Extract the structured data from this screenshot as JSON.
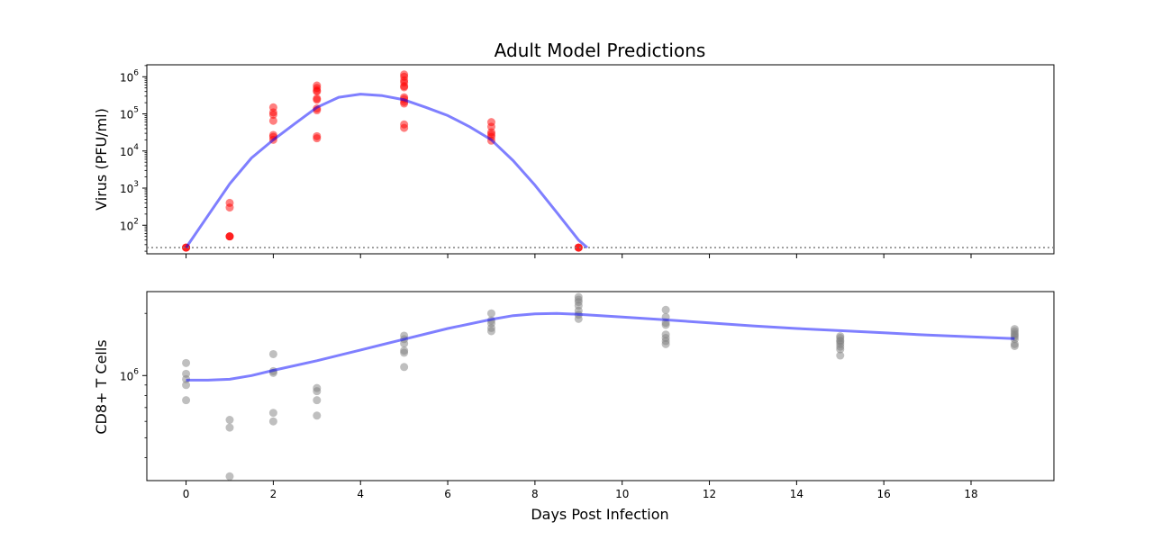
{
  "chart_data": {
    "type": "scatter",
    "title": "Adult Model Predictions",
    "xlabel": "Days Post Infection",
    "xlim": [
      -0.9,
      19.9
    ],
    "xticks": [
      0,
      2,
      4,
      6,
      8,
      10,
      12,
      14,
      16,
      18
    ],
    "xtick_labels": [
      "0",
      "2",
      "4",
      "6",
      "8",
      "10",
      "12",
      "14",
      "16",
      "18"
    ],
    "panels": [
      {
        "id": "virus",
        "ylabel": "Virus (PFU/ml)",
        "yscale": "log",
        "ylim": [
          17,
          2100000
        ],
        "yticks": [
          100,
          1000,
          10000,
          100000,
          1000000
        ],
        "ytick_bases": [
          "10",
          "10",
          "10",
          "10",
          "10"
        ],
        "ytick_exponents": [
          "2",
          "3",
          "4",
          "5",
          "6"
        ],
        "detection_limit": 25,
        "point_color": "#ff0000",
        "points": [
          [
            0,
            25
          ],
          [
            0,
            25
          ],
          [
            0,
            25
          ],
          [
            1,
            400
          ],
          [
            1,
            300
          ],
          [
            1,
            50
          ],
          [
            1,
            50
          ],
          [
            1,
            50
          ],
          [
            2,
            150000
          ],
          [
            2,
            110000
          ],
          [
            2,
            95000
          ],
          [
            2,
            65000
          ],
          [
            2,
            27000
          ],
          [
            2,
            24000
          ],
          [
            2,
            20000
          ],
          [
            3,
            580000
          ],
          [
            3,
            500000
          ],
          [
            3,
            430000
          ],
          [
            3,
            400000
          ],
          [
            3,
            260000
          ],
          [
            3,
            240000
          ],
          [
            3,
            140000
          ],
          [
            3,
            125000
          ],
          [
            3,
            25000
          ],
          [
            3,
            22000
          ],
          [
            5,
            1150000
          ],
          [
            5,
            1000000
          ],
          [
            5,
            800000
          ],
          [
            5,
            700000
          ],
          [
            5,
            560000
          ],
          [
            5,
            520000
          ],
          [
            5,
            280000
          ],
          [
            5,
            250000
          ],
          [
            5,
            210000
          ],
          [
            5,
            190000
          ],
          [
            5,
            52000
          ],
          [
            5,
            42000
          ],
          [
            7,
            60000
          ],
          [
            7,
            45000
          ],
          [
            7,
            32000
          ],
          [
            7,
            28000
          ],
          [
            7,
            24000
          ],
          [
            7,
            19000
          ],
          [
            9,
            25
          ],
          [
            9,
            25
          ],
          [
            9,
            25
          ]
        ],
        "fit_color": "#0000ff",
        "fit": [
          [
            0,
            25
          ],
          [
            0.5,
            180
          ],
          [
            1,
            1300
          ],
          [
            1.5,
            6500
          ],
          [
            2,
            20000
          ],
          [
            2.5,
            55000
          ],
          [
            3,
            150000
          ],
          [
            3.5,
            280000
          ],
          [
            4,
            340000
          ],
          [
            4.5,
            310000
          ],
          [
            5,
            240000
          ],
          [
            5.5,
            150000
          ],
          [
            6,
            90000
          ],
          [
            6.5,
            45000
          ],
          [
            7,
            20000
          ],
          [
            7.5,
            5500
          ],
          [
            8,
            1200
          ],
          [
            8.5,
            220
          ],
          [
            9,
            40
          ],
          [
            9.2,
            25
          ]
        ]
      },
      {
        "id": "cd8",
        "ylabel": "CD8+ T Cells",
        "yscale": "log",
        "ylim": [
          310000,
          2550000
        ],
        "yticks": [
          1000000
        ],
        "ytick_bases": [
          "10"
        ],
        "ytick_exponents": [
          "6"
        ],
        "point_color": "#808080",
        "points": [
          [
            0,
            1150000
          ],
          [
            0,
            1020000
          ],
          [
            0,
            960000
          ],
          [
            0,
            900000
          ],
          [
            0,
            760000
          ],
          [
            1,
            610000
          ],
          [
            1,
            560000
          ],
          [
            1,
            325000
          ],
          [
            2,
            1270000
          ],
          [
            2,
            1050000
          ],
          [
            2,
            1030000
          ],
          [
            2,
            660000
          ],
          [
            2,
            600000
          ],
          [
            3,
            870000
          ],
          [
            3,
            840000
          ],
          [
            3,
            760000
          ],
          [
            3,
            640000
          ],
          [
            5,
            1560000
          ],
          [
            5,
            1500000
          ],
          [
            5,
            1430000
          ],
          [
            5,
            1320000
          ],
          [
            5,
            1290000
          ],
          [
            5,
            1100000
          ],
          [
            7,
            2000000
          ],
          [
            7,
            1850000
          ],
          [
            7,
            1790000
          ],
          [
            7,
            1700000
          ],
          [
            7,
            1640000
          ],
          [
            9,
            2400000
          ],
          [
            9,
            2330000
          ],
          [
            9,
            2270000
          ],
          [
            9,
            2180000
          ],
          [
            9,
            2060000
          ],
          [
            9,
            1970000
          ],
          [
            9,
            1880000
          ],
          [
            11,
            2080000
          ],
          [
            11,
            1920000
          ],
          [
            11,
            1800000
          ],
          [
            11,
            1760000
          ],
          [
            11,
            1580000
          ],
          [
            11,
            1520000
          ],
          [
            11,
            1470000
          ],
          [
            11,
            1420000
          ],
          [
            15,
            1550000
          ],
          [
            15,
            1520000
          ],
          [
            15,
            1480000
          ],
          [
            15,
            1460000
          ],
          [
            15,
            1420000
          ],
          [
            15,
            1380000
          ],
          [
            15,
            1340000
          ],
          [
            15,
            1250000
          ],
          [
            19,
            1680000
          ],
          [
            19,
            1640000
          ],
          [
            19,
            1600000
          ],
          [
            19,
            1570000
          ],
          [
            19,
            1540000
          ],
          [
            19,
            1500000
          ],
          [
            19,
            1420000
          ],
          [
            19,
            1390000
          ]
        ],
        "fit_color": "#0000ff",
        "fit": [
          [
            0,
            950000
          ],
          [
            0.5,
            950000
          ],
          [
            1,
            960000
          ],
          [
            1.5,
            1000000
          ],
          [
            2,
            1060000
          ],
          [
            3,
            1180000
          ],
          [
            4,
            1330000
          ],
          [
            5,
            1500000
          ],
          [
            6,
            1690000
          ],
          [
            7,
            1870000
          ],
          [
            7.5,
            1950000
          ],
          [
            8,
            1990000
          ],
          [
            8.5,
            2000000
          ],
          [
            9,
            1980000
          ],
          [
            10,
            1920000
          ],
          [
            11,
            1860000
          ],
          [
            12,
            1800000
          ],
          [
            13,
            1740000
          ],
          [
            14,
            1690000
          ],
          [
            15,
            1650000
          ],
          [
            16,
            1610000
          ],
          [
            17,
            1570000
          ],
          [
            18,
            1540000
          ],
          [
            19,
            1510000
          ]
        ]
      }
    ]
  }
}
